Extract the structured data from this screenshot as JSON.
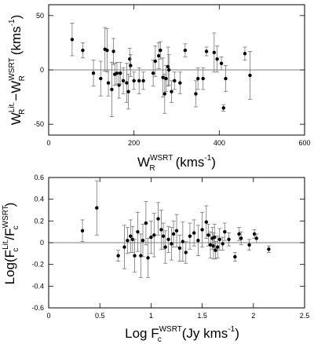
{
  "chart_data": [
    {
      "type": "scatter",
      "title": "",
      "xlabel_main": "W",
      "xlabel_sub": "R",
      "xlabel_sup": "WSRT",
      "xlabel_unit": "(kms",
      "xlabel_unit_exp": "-1",
      "xlabel_close": ")",
      "ylabel_parts": {
        "w1": "W",
        "sub1": "R",
        "sup1": "Lit.",
        "minus": "−",
        "w2": "W",
        "sub2": "R",
        "sup2": "WSRT",
        "unit": "(kms",
        "unit_exp": "-1",
        "close": ")"
      },
      "xlim": [
        0,
        600
      ],
      "ylim": [
        -60,
        60
      ],
      "xticks": [
        0,
        200,
        400,
        600
      ],
      "xtick_labels": [
        "0",
        "200",
        "400",
        "600"
      ],
      "yticks": [
        -50,
        0,
        50
      ],
      "ytick_labels": [
        "-50",
        "0",
        "50"
      ],
      "zero_line": 0,
      "points": [
        {
          "x": 55,
          "y": 28,
          "err": 15
        },
        {
          "x": 80,
          "y": 18,
          "err": 7
        },
        {
          "x": 105,
          "y": -3,
          "err": 12
        },
        {
          "x": 122,
          "y": -8,
          "err": 16
        },
        {
          "x": 132,
          "y": 19,
          "err": 20
        },
        {
          "x": 137,
          "y": 18,
          "err": 20
        },
        {
          "x": 140,
          "y": -12,
          "err": 12
        },
        {
          "x": 148,
          "y": -18,
          "err": 25
        },
        {
          "x": 152,
          "y": 17,
          "err": 12
        },
        {
          "x": 155,
          "y": -4,
          "err": 10
        },
        {
          "x": 160,
          "y": -3,
          "err": 10
        },
        {
          "x": 165,
          "y": -14,
          "err": 12
        },
        {
          "x": 168,
          "y": -3,
          "err": 10
        },
        {
          "x": 175,
          "y": -10,
          "err": 12
        },
        {
          "x": 183,
          "y": -12,
          "err": 18
        },
        {
          "x": 187,
          "y": -20,
          "err": 16
        },
        {
          "x": 190,
          "y": 10,
          "err": 10
        },
        {
          "x": 192,
          "y": 4,
          "err": 10
        },
        {
          "x": 200,
          "y": -10,
          "err": 8
        },
        {
          "x": 212,
          "y": -10,
          "err": 12
        },
        {
          "x": 222,
          "y": -10,
          "err": 8
        },
        {
          "x": 245,
          "y": -3,
          "err": 12
        },
        {
          "x": 250,
          "y": 8,
          "err": 14
        },
        {
          "x": 258,
          "y": 13,
          "err": 12
        },
        {
          "x": 262,
          "y": 18,
          "err": 8
        },
        {
          "x": 268,
          "y": -7,
          "err": 18
        },
        {
          "x": 272,
          "y": -22,
          "err": 18
        },
        {
          "x": 275,
          "y": -8,
          "err": 12
        },
        {
          "x": 280,
          "y": 3,
          "err": 18
        },
        {
          "x": 282,
          "y": 0,
          "err": 14
        },
        {
          "x": 288,
          "y": -20,
          "err": 10
        },
        {
          "x": 295,
          "y": -10,
          "err": 8
        },
        {
          "x": 308,
          "y": -12,
          "err": 10
        },
        {
          "x": 320,
          "y": 18,
          "err": 6
        },
        {
          "x": 345,
          "y": -22,
          "err": 12
        },
        {
          "x": 350,
          "y": -8,
          "err": 10
        },
        {
          "x": 362,
          "y": -8,
          "err": 10
        },
        {
          "x": 370,
          "y": 17,
          "err": 4
        },
        {
          "x": 388,
          "y": 16,
          "err": 18
        },
        {
          "x": 395,
          "y": 10,
          "err": 12
        },
        {
          "x": 405,
          "y": 6,
          "err": 6
        },
        {
          "x": 410,
          "y": -35,
          "err": 3
        },
        {
          "x": 415,
          "y": -8,
          "err": 12
        },
        {
          "x": 460,
          "y": 15,
          "err": 6
        },
        {
          "x": 472,
          "y": -5,
          "err": 22
        }
      ]
    },
    {
      "type": "scatter",
      "title": "",
      "xlabel_main": "Log F",
      "xlabel_sub": "c",
      "xlabel_sup": "WSRT",
      "xlabel_unit": "(Jy kms",
      "xlabel_unit_exp": "-1",
      "xlabel_close": ")",
      "ylabel_parts": {
        "pre": "Log(F",
        "sub1": "c",
        "sup1": "Lit.",
        "slash": "/F",
        "sub2": "c",
        "sup2": "WSRT",
        "close": ")"
      },
      "xlim": [
        0,
        2.5
      ],
      "ylim": [
        -0.6,
        0.6
      ],
      "xticks": [
        0,
        0.5,
        1,
        1.5,
        2,
        2.5
      ],
      "xtick_labels": [
        "0",
        "0.5",
        "1",
        "1.5",
        "2",
        "2.5"
      ],
      "yticks": [
        -0.6,
        -0.4,
        -0.2,
        0,
        0.2,
        0.4,
        0.6
      ],
      "ytick_labels": [
        "-0.6",
        "-0.4",
        "-0.2",
        "0",
        "0.2",
        "0.4",
        "0.6"
      ],
      "zero_line": 0,
      "points": [
        {
          "x": 0.33,
          "y": 0.11,
          "err": 0.1
        },
        {
          "x": 0.47,
          "y": 0.32,
          "err": 0.25
        },
        {
          "x": 0.68,
          "y": -0.12,
          "err": 0.05
        },
        {
          "x": 0.74,
          "y": -0.04,
          "err": 0.2
        },
        {
          "x": 0.77,
          "y": 0.02,
          "err": 0.12
        },
        {
          "x": 0.8,
          "y": 0.06,
          "err": 0.15
        },
        {
          "x": 0.82,
          "y": 0.03,
          "err": 0.12
        },
        {
          "x": 0.84,
          "y": -0.12,
          "err": 0.15
        },
        {
          "x": 0.87,
          "y": 0.1,
          "err": 0.18
        },
        {
          "x": 0.9,
          "y": -0.12,
          "err": 0.2
        },
        {
          "x": 0.92,
          "y": 0.02,
          "err": 0.15
        },
        {
          "x": 0.95,
          "y": 0.18,
          "err": 0.2
        },
        {
          "x": 0.97,
          "y": -0.14,
          "err": 0.18
        },
        {
          "x": 1.0,
          "y": 0.05,
          "err": 0.15
        },
        {
          "x": 1.03,
          "y": 0.07,
          "err": 0.2
        },
        {
          "x": 1.07,
          "y": 0.22,
          "err": 0.15
        },
        {
          "x": 1.1,
          "y": 0.12,
          "err": 0.18
        },
        {
          "x": 1.12,
          "y": 0.06,
          "err": 0.12
        },
        {
          "x": 1.14,
          "y": -0.04,
          "err": 0.15
        },
        {
          "x": 1.17,
          "y": 0.03,
          "err": 0.12
        },
        {
          "x": 1.2,
          "y": -0.01,
          "err": 0.15
        },
        {
          "x": 1.22,
          "y": 0.08,
          "err": 0.12
        },
        {
          "x": 1.25,
          "y": 0.11,
          "err": 0.15
        },
        {
          "x": 1.28,
          "y": -0.05,
          "err": 0.12
        },
        {
          "x": 1.31,
          "y": 0.01,
          "err": 0.18
        },
        {
          "x": 1.34,
          "y": -0.09,
          "err": 0.1
        },
        {
          "x": 1.38,
          "y": 0.06,
          "err": 0.12
        },
        {
          "x": 1.42,
          "y": 0.09,
          "err": 0.12
        },
        {
          "x": 1.46,
          "y": 0.02,
          "err": 0.14
        },
        {
          "x": 1.5,
          "y": 0.12,
          "err": 0.16
        },
        {
          "x": 1.54,
          "y": 0.19,
          "err": 0.15
        },
        {
          "x": 1.56,
          "y": 0.07,
          "err": 0.1
        },
        {
          "x": 1.58,
          "y": -0.02,
          "err": 0.12
        },
        {
          "x": 1.6,
          "y": 0.04,
          "err": 0.1
        },
        {
          "x": 1.61,
          "y": -0.03,
          "err": 0.12
        },
        {
          "x": 1.62,
          "y": 0.05,
          "err": 0.12
        },
        {
          "x": 1.63,
          "y": -0.07,
          "err": 0.08
        },
        {
          "x": 1.65,
          "y": -0.04,
          "err": 0.1
        },
        {
          "x": 1.67,
          "y": 0.03,
          "err": 0.1
        },
        {
          "x": 1.7,
          "y": -0.01,
          "err": 0.06
        },
        {
          "x": 1.72,
          "y": 0.1,
          "err": 0.08
        },
        {
          "x": 1.76,
          "y": 0.03,
          "err": 0.06
        },
        {
          "x": 1.82,
          "y": -0.13,
          "err": 0.04
        },
        {
          "x": 1.86,
          "y": 0.08,
          "err": 0.06
        },
        {
          "x": 1.88,
          "y": 0.04,
          "err": 0.06
        },
        {
          "x": 1.96,
          "y": -0.02,
          "err": 0.05
        },
        {
          "x": 2.01,
          "y": 0.08,
          "err": 0.04
        },
        {
          "x": 2.03,
          "y": 0.04,
          "err": 0.04
        },
        {
          "x": 2.15,
          "y": -0.06,
          "err": 0.03
        }
      ]
    }
  ]
}
